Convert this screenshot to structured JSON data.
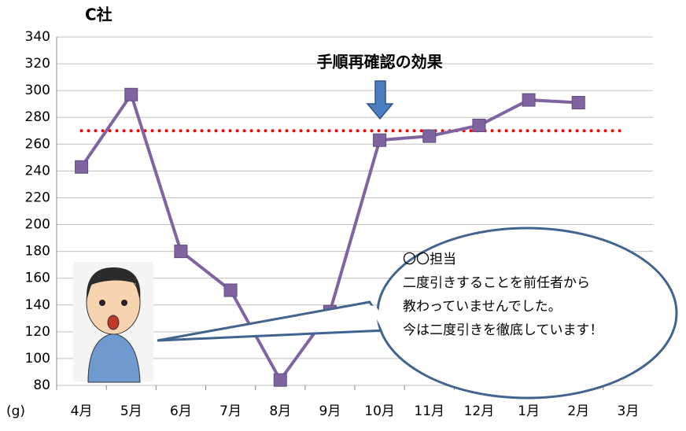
{
  "chart_data": {
    "type": "line",
    "title": "C社",
    "y_unit": "(g)",
    "categories": [
      "4月",
      "5月",
      "6月",
      "7月",
      "8月",
      "9月",
      "10月",
      "11月",
      "12月",
      "1月",
      "2月",
      "3月"
    ],
    "series": [
      {
        "color": "#8064a2",
        "values": [
          243,
          297,
          180,
          151,
          84,
          135,
          263,
          266,
          274,
          293,
          291,
          null
        ]
      }
    ],
    "ylim": [
      80,
      340
    ],
    "yticks": [
      80,
      100,
      120,
      140,
      160,
      180,
      200,
      220,
      240,
      260,
      280,
      300,
      320,
      340
    ],
    "grid": true,
    "reference_line": {
      "value": 270,
      "color": "#ff0000"
    },
    "annotation": {
      "text": "手順再確認の効果",
      "category_index": 6
    },
    "callout": {
      "lines": [
        "〇〇担当",
        "二度引きすることを前任者から",
        "教わっていませんでした。",
        "今は二度引きを徹底しています！"
      ]
    }
  }
}
